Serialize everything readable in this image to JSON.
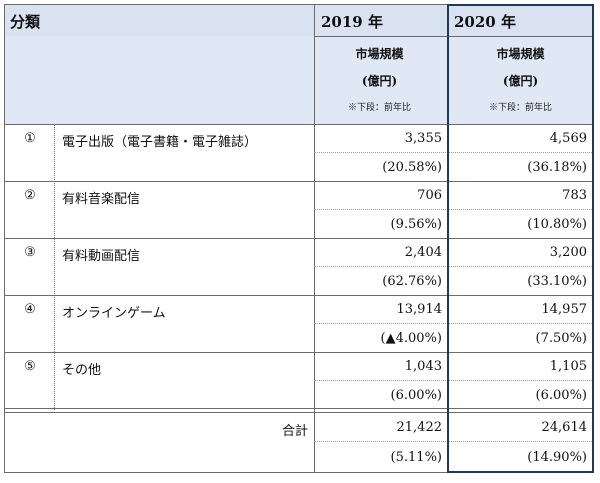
{
  "header": {
    "category": "分類",
    "col2019": {
      "year": "2019 年",
      "title": "市場規模",
      "unit": "(億円)",
      "note": "※下段：前年比"
    },
    "col2020": {
      "year": "2020 年",
      "title": "市場規模",
      "unit": "(億円)",
      "note": "※下段：前年比"
    }
  },
  "rows": [
    {
      "index": "①",
      "label": "電子出版（電子書籍・電子雑誌）",
      "v2019": "3,355",
      "r2019": "(20.58%)",
      "v2020": "4,569",
      "r2020": "(36.18%)"
    },
    {
      "index": "②",
      "label": "有料音楽配信",
      "v2019": "706",
      "r2019": "(9.56%)",
      "v2020": "783",
      "r2020": "(10.80%)"
    },
    {
      "index": "③",
      "label": "有料動画配信",
      "v2019": "2,404",
      "r2019": "(62.76%)",
      "v2020": "3,200",
      "r2020": "(33.10%)"
    },
    {
      "index": "④",
      "label": "オンラインゲーム",
      "v2019": "13,914",
      "r2019": "(▲4.00%)",
      "v2020": "14,957",
      "r2020": "(7.50%)"
    },
    {
      "index": "⑤",
      "label": "その他",
      "v2019": "1,043",
      "r2019": "(6.00%)",
      "v2020": "1,105",
      "r2020": "(6.00%)"
    }
  ],
  "total": {
    "label": "合計",
    "v2019": "21,422",
    "r2019": "(5.11%)",
    "v2020": "24,614",
    "r2020": "(14.90%)"
  }
}
